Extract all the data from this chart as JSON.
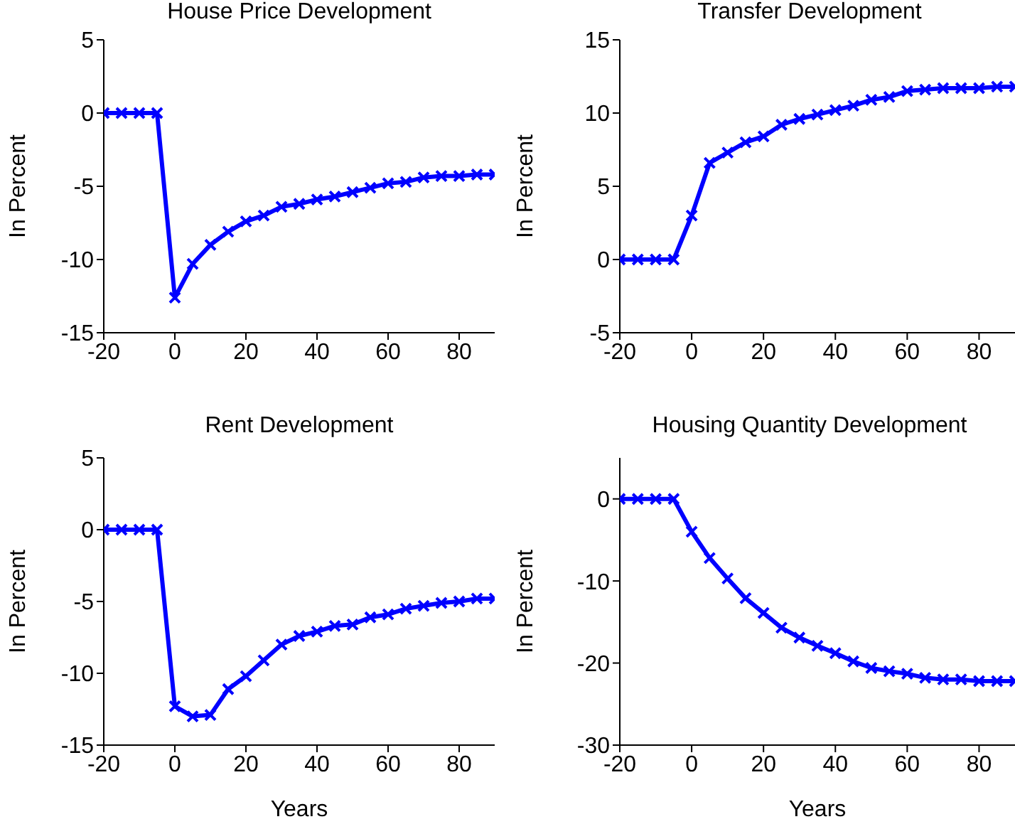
{
  "chart_data": [
    {
      "type": "line",
      "title": "House Price Development",
      "ylabel": "In Percent",
      "x": [
        -20,
        -15,
        -10,
        -5,
        0,
        5,
        10,
        15,
        20,
        25,
        30,
        35,
        40,
        45,
        50,
        55,
        60,
        65,
        70,
        75,
        80,
        85,
        90
      ],
      "marker": "cross",
      "line_style": "solid",
      "xlim": [
        -20,
        90
      ],
      "xticks": [
        -20,
        0,
        20,
        40,
        60,
        80
      ],
      "ylim": [
        -15,
        5
      ],
      "yticks": [
        -15,
        -10,
        -5,
        0,
        5
      ],
      "series": [
        {
          "color": "#0000ff",
          "values": [
            0,
            0,
            0,
            0,
            -12.6,
            -10.3,
            -9.0,
            -8.1,
            -7.4,
            -7.0,
            -6.4,
            -6.2,
            -5.9,
            -5.7,
            -5.4,
            -5.1,
            -4.8,
            -4.7,
            -4.4,
            -4.3,
            -4.3,
            -4.2,
            -4.2
          ]
        }
      ]
    },
    {
      "type": "line",
      "title": "Transfer Development",
      "ylabel": "In Percent",
      "x": [
        -20,
        -15,
        -10,
        -5,
        0,
        5,
        10,
        15,
        20,
        25,
        30,
        35,
        40,
        45,
        50,
        55,
        60,
        65,
        70,
        75,
        80,
        85,
        90
      ],
      "marker": "cross",
      "line_style": "solid",
      "xlim": [
        -20,
        90
      ],
      "xticks": [
        -20,
        0,
        20,
        40,
        60,
        80
      ],
      "ylim": [
        -5,
        15
      ],
      "yticks": [
        -5,
        0,
        5,
        10,
        15
      ],
      "series": [
        {
          "color": "#0000ff",
          "values": [
            0,
            0,
            0,
            0,
            3.0,
            6.6,
            7.3,
            8.0,
            8.4,
            9.2,
            9.6,
            9.9,
            10.2,
            10.5,
            10.9,
            11.1,
            11.5,
            11.6,
            11.7,
            11.7,
            11.7,
            11.8,
            11.8
          ]
        }
      ]
    },
    {
      "type": "line",
      "title": "Rent Development",
      "xlabel": "Years",
      "ylabel": "In Percent",
      "x": [
        -20,
        -15,
        -10,
        -5,
        0,
        5,
        10,
        15,
        20,
        25,
        30,
        35,
        40,
        45,
        50,
        55,
        60,
        65,
        70,
        75,
        80,
        85,
        90
      ],
      "marker": "cross",
      "line_style": "solid",
      "xlim": [
        -20,
        90
      ],
      "xticks": [
        -20,
        0,
        20,
        40,
        60,
        80
      ],
      "ylim": [
        -15,
        5
      ],
      "yticks": [
        -15,
        -10,
        -5,
        0,
        5
      ],
      "series": [
        {
          "color": "#0000ff",
          "values": [
            0,
            0,
            0,
            0,
            -12.3,
            -13.0,
            -12.9,
            -11.1,
            -10.2,
            -9.1,
            -8.0,
            -7.4,
            -7.1,
            -6.7,
            -6.6,
            -6.1,
            -5.9,
            -5.5,
            -5.3,
            -5.1,
            -5.0,
            -4.8,
            -4.8
          ]
        }
      ]
    },
    {
      "type": "line",
      "title": "Housing Quantity Development",
      "xlabel": "Years",
      "ylabel": "In Percent",
      "x": [
        -20,
        -15,
        -10,
        -5,
        0,
        5,
        10,
        15,
        20,
        25,
        30,
        35,
        40,
        45,
        50,
        55,
        60,
        65,
        70,
        75,
        80,
        85,
        90
      ],
      "marker": "cross",
      "line_style": "solid",
      "xlim": [
        -20,
        90
      ],
      "xticks": [
        -20,
        0,
        20,
        40,
        60,
        80
      ],
      "ylim": [
        -30,
        5
      ],
      "yticks": [
        -30,
        -20,
        -10,
        0
      ],
      "series": [
        {
          "color": "#0000ff",
          "values": [
            0,
            0,
            0,
            0,
            -4.0,
            -7.2,
            -9.7,
            -12.1,
            -13.9,
            -15.7,
            -16.9,
            -17.9,
            -18.8,
            -19.8,
            -20.6,
            -21.0,
            -21.3,
            -21.8,
            -22.0,
            -22.0,
            -22.2,
            -22.2,
            -22.2
          ]
        }
      ]
    }
  ]
}
